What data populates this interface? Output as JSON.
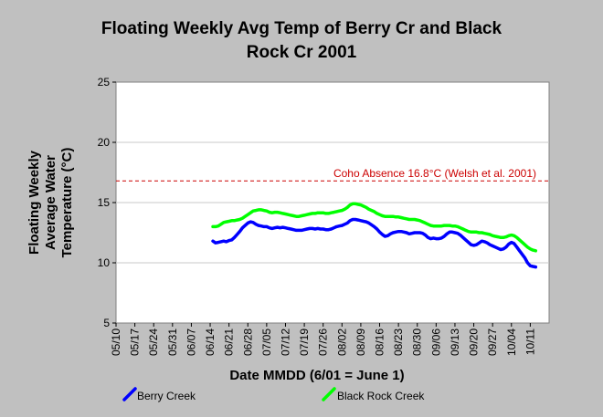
{
  "chart_data": {
    "type": "line",
    "title_line1": "Floating Weekly Avg Temp of Berry Cr and Black",
    "title_line2": "Rock Cr 2001",
    "xlabel": "Date MMDD (6/01 = June 1)",
    "ylabel_line1": "Floating Weekly",
    "ylabel_line2": "Average Water",
    "ylabel_line3": "Temperature (°C)",
    "ylim": [
      5,
      25
    ],
    "yticks": [
      5,
      10,
      15,
      20,
      25
    ],
    "grid": true,
    "legend_position": "bottom",
    "x_categories": [
      "05/10",
      "05/17",
      "05/24",
      "05/31",
      "06/07",
      "06/14",
      "06/21",
      "06/28",
      "07/05",
      "07/12",
      "07/19",
      "07/26",
      "08/02",
      "08/09",
      "08/16",
      "08/23",
      "08/30",
      "09/06",
      "09/13",
      "09/20",
      "09/27",
      "10/04",
      "10/11"
    ],
    "x_start": "05/10",
    "reference_line": {
      "label": "Coho Absence 16.8°C (Welsh et al. 2001)",
      "value": 16.8,
      "color": "#cc0000"
    },
    "series": [
      {
        "name": "Berry Creek",
        "color": "#0000ff",
        "points": [
          [
            "06/15",
            11.8
          ],
          [
            "06/16",
            11.65
          ],
          [
            "06/17",
            11.7
          ],
          [
            "06/18",
            11.75
          ],
          [
            "06/19",
            11.8
          ],
          [
            "06/20",
            11.75
          ],
          [
            "06/21",
            11.85
          ],
          [
            "06/22",
            11.9
          ],
          [
            "06/23",
            12.1
          ],
          [
            "06/24",
            12.35
          ],
          [
            "06/25",
            12.6
          ],
          [
            "06/26",
            12.9
          ],
          [
            "06/27",
            13.1
          ],
          [
            "06/28",
            13.3
          ],
          [
            "06/29",
            13.4
          ],
          [
            "06/30",
            13.35
          ],
          [
            "07/01",
            13.2
          ],
          [
            "07/02",
            13.1
          ],
          [
            "07/03",
            13.05
          ],
          [
            "07/04",
            13.0
          ],
          [
            "07/05",
            13.0
          ],
          [
            "07/06",
            12.9
          ],
          [
            "07/07",
            12.85
          ],
          [
            "07/08",
            12.9
          ],
          [
            "07/09",
            12.95
          ],
          [
            "07/10",
            12.9
          ],
          [
            "07/11",
            12.95
          ],
          [
            "07/12",
            12.9
          ],
          [
            "07/13",
            12.85
          ],
          [
            "07/14",
            12.8
          ],
          [
            "07/15",
            12.75
          ],
          [
            "07/16",
            12.7
          ],
          [
            "07/17",
            12.7
          ],
          [
            "07/18",
            12.7
          ],
          [
            "07/19",
            12.75
          ],
          [
            "07/20",
            12.8
          ],
          [
            "07/21",
            12.85
          ],
          [
            "07/22",
            12.85
          ],
          [
            "07/23",
            12.8
          ],
          [
            "07/24",
            12.85
          ],
          [
            "07/25",
            12.8
          ],
          [
            "07/26",
            12.8
          ],
          [
            "07/27",
            12.75
          ],
          [
            "07/28",
            12.75
          ],
          [
            "07/29",
            12.8
          ],
          [
            "07/30",
            12.9
          ],
          [
            "07/31",
            13.0
          ],
          [
            "08/01",
            13.05
          ],
          [
            "08/02",
            13.1
          ],
          [
            "08/03",
            13.2
          ],
          [
            "08/04",
            13.3
          ],
          [
            "08/05",
            13.5
          ],
          [
            "08/06",
            13.6
          ],
          [
            "08/07",
            13.6
          ],
          [
            "08/08",
            13.55
          ],
          [
            "08/09",
            13.5
          ],
          [
            "08/10",
            13.45
          ],
          [
            "08/11",
            13.4
          ],
          [
            "08/12",
            13.3
          ],
          [
            "08/13",
            13.15
          ],
          [
            "08/14",
            13.0
          ],
          [
            "08/15",
            12.8
          ],
          [
            "08/16",
            12.55
          ],
          [
            "08/17",
            12.35
          ],
          [
            "08/18",
            12.2
          ],
          [
            "08/19",
            12.25
          ],
          [
            "08/20",
            12.4
          ],
          [
            "08/21",
            12.5
          ],
          [
            "08/22",
            12.55
          ],
          [
            "08/23",
            12.6
          ],
          [
            "08/24",
            12.6
          ],
          [
            "08/25",
            12.55
          ],
          [
            "08/26",
            12.5
          ],
          [
            "08/27",
            12.4
          ],
          [
            "08/28",
            12.45
          ],
          [
            "08/29",
            12.5
          ],
          [
            "08/30",
            12.5
          ],
          [
            "08/31",
            12.5
          ],
          [
            "09/01",
            12.45
          ],
          [
            "09/02",
            12.3
          ],
          [
            "09/03",
            12.1
          ],
          [
            "09/04",
            12.0
          ],
          [
            "09/05",
            12.05
          ],
          [
            "09/06",
            12.0
          ],
          [
            "09/07",
            12.0
          ],
          [
            "09/08",
            12.05
          ],
          [
            "09/09",
            12.2
          ],
          [
            "09/10",
            12.4
          ],
          [
            "09/11",
            12.55
          ],
          [
            "09/12",
            12.55
          ],
          [
            "09/13",
            12.5
          ],
          [
            "09/14",
            12.45
          ],
          [
            "09/15",
            12.3
          ],
          [
            "09/16",
            12.1
          ],
          [
            "09/17",
            11.9
          ],
          [
            "09/18",
            11.7
          ],
          [
            "09/19",
            11.5
          ],
          [
            "09/20",
            11.45
          ],
          [
            "09/21",
            11.5
          ],
          [
            "09/22",
            11.65
          ],
          [
            "09/23",
            11.8
          ],
          [
            "09/24",
            11.75
          ],
          [
            "09/25",
            11.65
          ],
          [
            "09/26",
            11.5
          ],
          [
            "09/27",
            11.4
          ],
          [
            "09/28",
            11.3
          ],
          [
            "09/29",
            11.2
          ],
          [
            "09/30",
            11.1
          ],
          [
            "10/01",
            11.15
          ],
          [
            "10/02",
            11.3
          ],
          [
            "10/03",
            11.55
          ],
          [
            "10/04",
            11.7
          ],
          [
            "10/05",
            11.6
          ],
          [
            "10/06",
            11.3
          ],
          [
            "10/07",
            11.0
          ],
          [
            "10/08",
            10.7
          ],
          [
            "10/09",
            10.4
          ],
          [
            "10/10",
            10.0
          ],
          [
            "10/11",
            9.75
          ],
          [
            "10/12",
            9.7
          ],
          [
            "10/13",
            9.65
          ]
        ]
      },
      {
        "name": "Black Rock Creek",
        "color": "#00ff00",
        "points": [
          [
            "06/15",
            13.0
          ],
          [
            "06/16",
            13.0
          ],
          [
            "06/17",
            13.05
          ],
          [
            "06/18",
            13.2
          ],
          [
            "06/19",
            13.35
          ],
          [
            "06/20",
            13.4
          ],
          [
            "06/21",
            13.45
          ],
          [
            "06/22",
            13.5
          ],
          [
            "06/23",
            13.5
          ],
          [
            "06/24",
            13.55
          ],
          [
            "06/25",
            13.6
          ],
          [
            "06/26",
            13.7
          ],
          [
            "06/27",
            13.85
          ],
          [
            "06/28",
            14.0
          ],
          [
            "06/29",
            14.15
          ],
          [
            "06/30",
            14.3
          ],
          [
            "07/01",
            14.35
          ],
          [
            "07/02",
            14.4
          ],
          [
            "07/03",
            14.4
          ],
          [
            "07/04",
            14.35
          ],
          [
            "07/05",
            14.3
          ],
          [
            "07/06",
            14.2
          ],
          [
            "07/07",
            14.15
          ],
          [
            "07/08",
            14.2
          ],
          [
            "07/09",
            14.2
          ],
          [
            "07/10",
            14.15
          ],
          [
            "07/11",
            14.1
          ],
          [
            "07/12",
            14.05
          ],
          [
            "07/13",
            14.0
          ],
          [
            "07/14",
            13.95
          ],
          [
            "07/15",
            13.9
          ],
          [
            "07/16",
            13.85
          ],
          [
            "07/17",
            13.85
          ],
          [
            "07/18",
            13.9
          ],
          [
            "07/19",
            13.95
          ],
          [
            "07/20",
            14.0
          ],
          [
            "07/21",
            14.05
          ],
          [
            "07/22",
            14.1
          ],
          [
            "07/23",
            14.1
          ],
          [
            "07/24",
            14.15
          ],
          [
            "07/25",
            14.15
          ],
          [
            "07/26",
            14.15
          ],
          [
            "07/27",
            14.1
          ],
          [
            "07/28",
            14.1
          ],
          [
            "07/29",
            14.15
          ],
          [
            "07/30",
            14.2
          ],
          [
            "07/31",
            14.25
          ],
          [
            "08/01",
            14.3
          ],
          [
            "08/02",
            14.35
          ],
          [
            "08/03",
            14.45
          ],
          [
            "08/04",
            14.6
          ],
          [
            "08/05",
            14.8
          ],
          [
            "08/06",
            14.9
          ],
          [
            "08/07",
            14.9
          ],
          [
            "08/08",
            14.85
          ],
          [
            "08/09",
            14.8
          ],
          [
            "08/10",
            14.7
          ],
          [
            "08/11",
            14.6
          ],
          [
            "08/12",
            14.45
          ],
          [
            "08/13",
            14.35
          ],
          [
            "08/14",
            14.25
          ],
          [
            "08/15",
            14.1
          ],
          [
            "08/16",
            14.0
          ],
          [
            "08/17",
            13.9
          ],
          [
            "08/18",
            13.85
          ],
          [
            "08/19",
            13.85
          ],
          [
            "08/20",
            13.85
          ],
          [
            "08/21",
            13.85
          ],
          [
            "08/22",
            13.8
          ],
          [
            "08/23",
            13.8
          ],
          [
            "08/24",
            13.75
          ],
          [
            "08/25",
            13.7
          ],
          [
            "08/26",
            13.65
          ],
          [
            "08/27",
            13.6
          ],
          [
            "08/28",
            13.6
          ],
          [
            "08/29",
            13.6
          ],
          [
            "08/30",
            13.55
          ],
          [
            "08/31",
            13.5
          ],
          [
            "09/01",
            13.4
          ],
          [
            "09/02",
            13.3
          ],
          [
            "09/03",
            13.2
          ],
          [
            "09/04",
            13.1
          ],
          [
            "09/05",
            13.05
          ],
          [
            "09/06",
            13.05
          ],
          [
            "09/07",
            13.05
          ],
          [
            "09/08",
            13.05
          ],
          [
            "09/09",
            13.1
          ],
          [
            "09/10",
            13.1
          ],
          [
            "09/11",
            13.1
          ],
          [
            "09/12",
            13.05
          ],
          [
            "09/13",
            13.05
          ],
          [
            "09/14",
            13.0
          ],
          [
            "09/15",
            12.9
          ],
          [
            "09/16",
            12.8
          ],
          [
            "09/17",
            12.7
          ],
          [
            "09/18",
            12.6
          ],
          [
            "09/19",
            12.55
          ],
          [
            "09/20",
            12.55
          ],
          [
            "09/21",
            12.55
          ],
          [
            "09/22",
            12.5
          ],
          [
            "09/23",
            12.5
          ],
          [
            "09/24",
            12.45
          ],
          [
            "09/25",
            12.4
          ],
          [
            "09/26",
            12.35
          ],
          [
            "09/27",
            12.25
          ],
          [
            "09/28",
            12.2
          ],
          [
            "09/29",
            12.15
          ],
          [
            "09/30",
            12.1
          ],
          [
            "10/01",
            12.1
          ],
          [
            "10/02",
            12.15
          ],
          [
            "10/03",
            12.25
          ],
          [
            "10/04",
            12.3
          ],
          [
            "10/05",
            12.25
          ],
          [
            "10/06",
            12.1
          ],
          [
            "10/07",
            11.9
          ],
          [
            "10/08",
            11.7
          ],
          [
            "10/09",
            11.5
          ],
          [
            "10/10",
            11.3
          ],
          [
            "10/11",
            11.15
          ],
          [
            "10/12",
            11.05
          ],
          [
            "10/13",
            11.0
          ]
        ]
      }
    ]
  }
}
